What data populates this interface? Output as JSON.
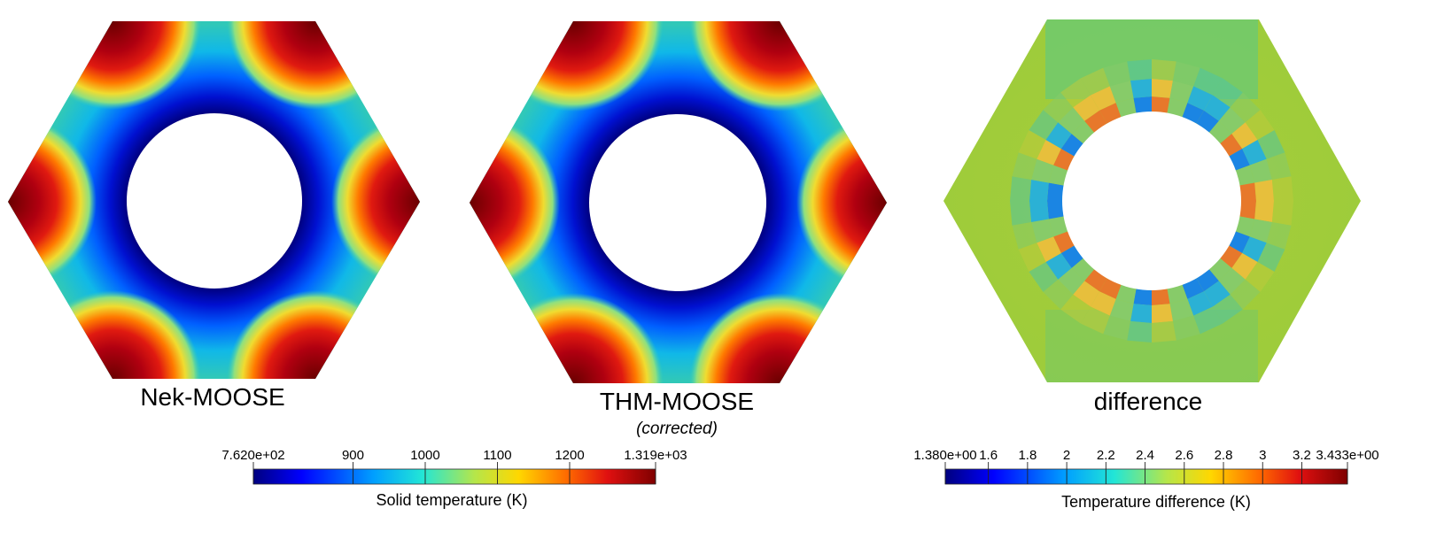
{
  "panels": [
    {
      "title": "Nek-MOOSE",
      "subtitle": ""
    },
    {
      "title": "THM-MOOSE",
      "subtitle": "(corrected)"
    },
    {
      "title": "difference",
      "subtitle": ""
    }
  ],
  "colorbars": [
    {
      "title": "Solid temperature (K)",
      "min": 762.0,
      "max": 1319.0,
      "ticks": [
        {
          "value": 762.0,
          "label": "7.620e+02"
        },
        {
          "value": 900,
          "label": "900"
        },
        {
          "value": 1000,
          "label": "1000"
        },
        {
          "value": 1100,
          "label": "1100"
        },
        {
          "value": 1200,
          "label": "1200"
        },
        {
          "value": 1319.0,
          "label": "1.319e+03"
        }
      ]
    },
    {
      "title": "Temperature difference (K)",
      "min": 1.38,
      "max": 3.433,
      "ticks": [
        {
          "value": 1.38,
          "label": "1.380e+00"
        },
        {
          "value": 1.6,
          "label": "1.6"
        },
        {
          "value": 1.8,
          "label": "1.8"
        },
        {
          "value": 2.0,
          "label": "2"
        },
        {
          "value": 2.2,
          "label": "2.2"
        },
        {
          "value": 2.4,
          "label": "2.4"
        },
        {
          "value": 2.6,
          "label": "2.6"
        },
        {
          "value": 2.8,
          "label": "2.8"
        },
        {
          "value": 3.0,
          "label": "3"
        },
        {
          "value": 3.2,
          "label": "3.2"
        },
        {
          "value": 3.433,
          "label": "3.433e+00"
        }
      ]
    }
  ],
  "colormap": [
    "#00007f",
    "#0000ff",
    "#00a0ff",
    "#22e6d6",
    "#b5e64a",
    "#ffd700",
    "#ff6a00",
    "#e01010",
    "#7f0000"
  ],
  "field_colors": {
    "cool_ring": "#0a1aa8",
    "mid_field": "#35c7b0",
    "hot_corner": "#c8101a",
    "diff_background": "#a8cc3a",
    "diff_high": "#d42a1a",
    "diff_low": "#1550d8"
  }
}
